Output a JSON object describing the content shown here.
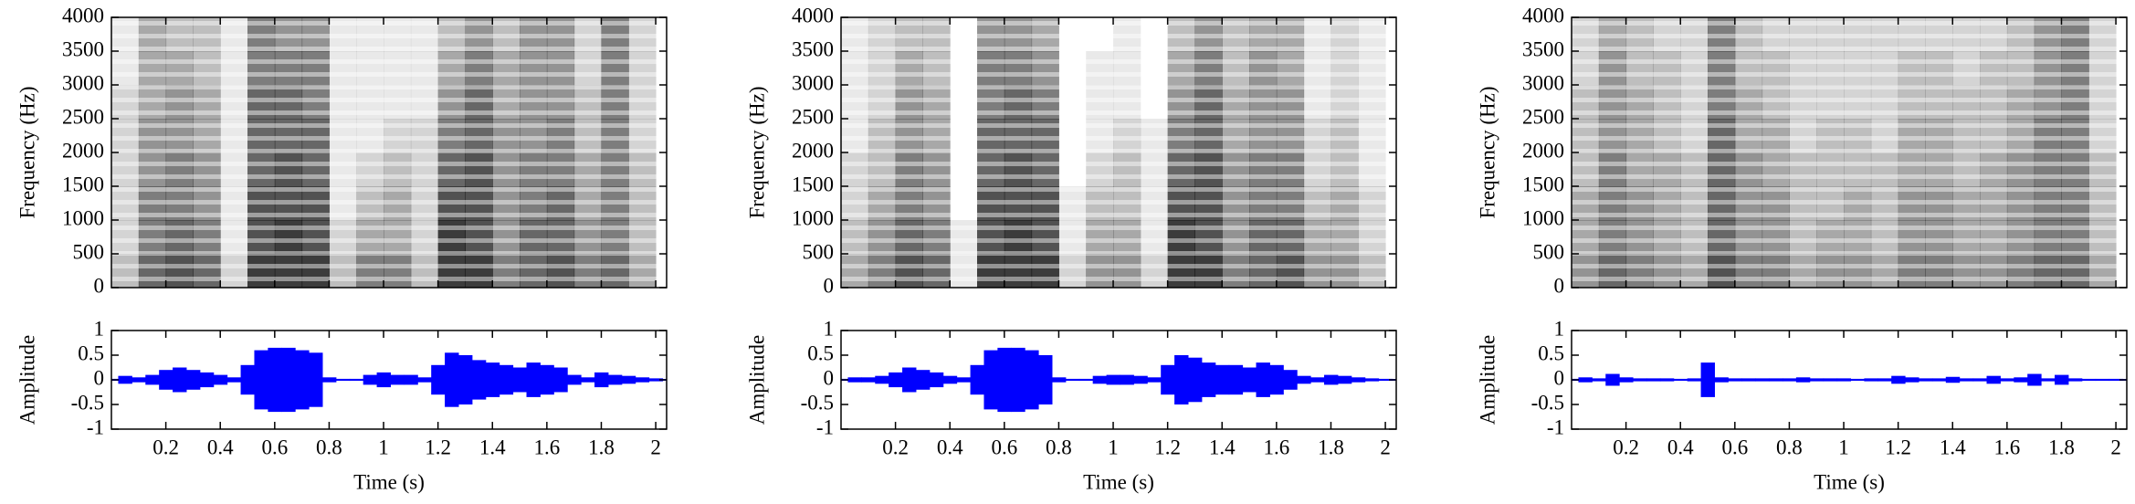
{
  "chart_data": [
    {
      "type": "spectrogram",
      "ylabel": "Frequency (Hz)",
      "color": "#000000",
      "xlim": [
        0,
        2.04
      ],
      "xticks": [
        0.2,
        0.4,
        0.6,
        0.8,
        1,
        1.2,
        1.4,
        1.6,
        1.8,
        2
      ],
      "ylim": [
        0,
        4000
      ],
      "yticks": [
        0,
        500,
        1000,
        1500,
        2000,
        2500,
        3000,
        3500,
        4000
      ],
      "x": [
        0.05,
        0.15,
        0.25,
        0.35,
        0.45,
        0.55,
        0.65,
        0.75,
        0.85,
        0.95,
        1.05,
        1.15,
        1.25,
        1.35,
        1.45,
        1.55,
        1.65,
        1.75,
        1.85,
        1.95
      ],
      "y": [
        250,
        750,
        1250,
        1750,
        2250,
        2750,
        3250,
        3750
      ],
      "values": [
        [
          0.3,
          0.7,
          0.8,
          0.7,
          0.2,
          0.9,
          0.9,
          0.9,
          0.3,
          0.6,
          0.6,
          0.3,
          0.9,
          0.9,
          0.6,
          0.7,
          0.8,
          0.6,
          0.7,
          0.4
        ],
        [
          0.2,
          0.6,
          0.7,
          0.6,
          0.1,
          0.8,
          0.9,
          0.8,
          0.2,
          0.4,
          0.4,
          0.2,
          0.9,
          0.8,
          0.5,
          0.7,
          0.7,
          0.5,
          0.6,
          0.3
        ],
        [
          0.2,
          0.6,
          0.6,
          0.5,
          0.1,
          0.8,
          0.8,
          0.8,
          0.1,
          0.3,
          0.4,
          0.2,
          0.8,
          0.8,
          0.5,
          0.6,
          0.7,
          0.4,
          0.6,
          0.3
        ],
        [
          0.2,
          0.5,
          0.6,
          0.5,
          0.1,
          0.7,
          0.8,
          0.7,
          0.1,
          0.2,
          0.3,
          0.2,
          0.7,
          0.8,
          0.5,
          0.6,
          0.6,
          0.4,
          0.6,
          0.3
        ],
        [
          0.2,
          0.5,
          0.5,
          0.4,
          0.1,
          0.7,
          0.7,
          0.7,
          0.1,
          0.1,
          0.2,
          0.2,
          0.6,
          0.7,
          0.5,
          0.5,
          0.6,
          0.3,
          0.6,
          0.2
        ],
        [
          0.2,
          0.4,
          0.5,
          0.4,
          0.1,
          0.7,
          0.7,
          0.6,
          0.1,
          0.1,
          0.1,
          0.1,
          0.5,
          0.7,
          0.4,
          0.5,
          0.5,
          0.3,
          0.6,
          0.2
        ],
        [
          0.1,
          0.4,
          0.4,
          0.3,
          0.1,
          0.6,
          0.6,
          0.6,
          0.1,
          0.1,
          0.1,
          0.1,
          0.4,
          0.6,
          0.4,
          0.5,
          0.5,
          0.2,
          0.6,
          0.2
        ],
        [
          0.1,
          0.4,
          0.3,
          0.3,
          0.1,
          0.6,
          0.5,
          0.5,
          0.1,
          0.1,
          0.1,
          0.1,
          0.3,
          0.5,
          0.3,
          0.5,
          0.5,
          0.2,
          0.6,
          0.2
        ]
      ]
    },
    {
      "type": "area",
      "xlabel": "Time (s)",
      "ylabel": "Amplitude",
      "xlim": [
        0,
        2.04
      ],
      "xticks": [
        0.2,
        0.4,
        0.6,
        0.8,
        1,
        1.2,
        1.4,
        1.6,
        1.8,
        2
      ],
      "ylim": [
        -1,
        1
      ],
      "yticks": [
        -1,
        -0.5,
        0,
        0.5,
        1
      ],
      "x": [
        0,
        0.05,
        0.1,
        0.15,
        0.2,
        0.25,
        0.3,
        0.35,
        0.4,
        0.45,
        0.5,
        0.55,
        0.6,
        0.65,
        0.7,
        0.75,
        0.8,
        0.85,
        0.9,
        0.95,
        1,
        1.05,
        1.1,
        1.15,
        1.2,
        1.25,
        1.3,
        1.35,
        1.4,
        1.45,
        1.5,
        1.55,
        1.6,
        1.65,
        1.7,
        1.75,
        1.8,
        1.85,
        1.9,
        1.95,
        2
      ],
      "series": [
        {
          "color": "#0000ff",
          "values": [
            0.02,
            0.08,
            0.05,
            0.1,
            0.2,
            0.25,
            0.2,
            0.15,
            0.1,
            0.05,
            0.3,
            0.6,
            0.65,
            0.65,
            0.6,
            0.55,
            0.05,
            0.02,
            0.02,
            0.1,
            0.15,
            0.1,
            0.1,
            0.05,
            0.3,
            0.55,
            0.5,
            0.4,
            0.35,
            0.3,
            0.25,
            0.35,
            0.3,
            0.25,
            0.1,
            0.05,
            0.15,
            0.1,
            0.08,
            0.05,
            0.03
          ]
        }
      ]
    },
    {
      "type": "spectrogram",
      "ylabel": "Frequency (Hz)",
      "color": "#000000",
      "xlim": [
        0,
        2.04
      ],
      "xticks": [
        0.2,
        0.4,
        0.6,
        0.8,
        1,
        1.2,
        1.4,
        1.6,
        1.8,
        2
      ],
      "ylim": [
        0,
        4000
      ],
      "yticks": [
        0,
        500,
        1000,
        1500,
        2000,
        2500,
        3000,
        3500,
        4000
      ],
      "x": [
        0.05,
        0.15,
        0.25,
        0.35,
        0.45,
        0.55,
        0.65,
        0.75,
        0.85,
        0.95,
        1.05,
        1.15,
        1.25,
        1.35,
        1.45,
        1.55,
        1.65,
        1.75,
        1.85,
        1.95
      ],
      "y": [
        250,
        750,
        1250,
        1750,
        2250,
        2750,
        3250,
        3750
      ],
      "values": [
        [
          0.4,
          0.6,
          0.8,
          0.7,
          0.1,
          0.9,
          0.9,
          0.9,
          0.2,
          0.5,
          0.5,
          0.2,
          0.9,
          0.9,
          0.6,
          0.7,
          0.8,
          0.5,
          0.5,
          0.3
        ],
        [
          0.3,
          0.5,
          0.7,
          0.6,
          0.1,
          0.8,
          0.9,
          0.8,
          0.1,
          0.4,
          0.4,
          0.1,
          0.9,
          0.8,
          0.5,
          0.7,
          0.7,
          0.4,
          0.4,
          0.2
        ],
        [
          0.2,
          0.4,
          0.6,
          0.5,
          0.0,
          0.8,
          0.8,
          0.8,
          0.1,
          0.3,
          0.3,
          0.1,
          0.8,
          0.8,
          0.5,
          0.6,
          0.6,
          0.3,
          0.4,
          0.2
        ],
        [
          0.2,
          0.3,
          0.6,
          0.5,
          0.0,
          0.7,
          0.8,
          0.7,
          0.0,
          0.2,
          0.3,
          0.1,
          0.7,
          0.8,
          0.5,
          0.6,
          0.6,
          0.2,
          0.3,
          0.1
        ],
        [
          0.1,
          0.3,
          0.5,
          0.4,
          0.0,
          0.7,
          0.7,
          0.7,
          0.0,
          0.1,
          0.2,
          0.1,
          0.6,
          0.7,
          0.4,
          0.5,
          0.5,
          0.2,
          0.3,
          0.1
        ],
        [
          0.1,
          0.2,
          0.5,
          0.4,
          0.0,
          0.6,
          0.7,
          0.6,
          0.0,
          0.1,
          0.1,
          0.0,
          0.5,
          0.7,
          0.4,
          0.5,
          0.5,
          0.1,
          0.2,
          0.1
        ],
        [
          0.1,
          0.2,
          0.4,
          0.3,
          0.0,
          0.6,
          0.6,
          0.5,
          0.0,
          0.1,
          0.1,
          0.0,
          0.4,
          0.6,
          0.3,
          0.5,
          0.4,
          0.1,
          0.2,
          0.1
        ],
        [
          0.1,
          0.2,
          0.3,
          0.3,
          0.0,
          0.5,
          0.5,
          0.4,
          0.0,
          0.0,
          0.1,
          0.0,
          0.3,
          0.5,
          0.3,
          0.4,
          0.4,
          0.1,
          0.2,
          0.1
        ]
      ]
    },
    {
      "type": "area",
      "xlabel": "Time (s)",
      "ylabel": "Amplitude",
      "xlim": [
        0,
        2.04
      ],
      "xticks": [
        0.2,
        0.4,
        0.6,
        0.8,
        1,
        1.2,
        1.4,
        1.6,
        1.8,
        2
      ],
      "ylim": [
        -1,
        1
      ],
      "yticks": [
        -1,
        -0.5,
        0,
        0.5,
        1
      ],
      "x": [
        0,
        0.05,
        0.1,
        0.15,
        0.2,
        0.25,
        0.3,
        0.35,
        0.4,
        0.45,
        0.5,
        0.55,
        0.6,
        0.65,
        0.7,
        0.75,
        0.8,
        0.85,
        0.9,
        0.95,
        1,
        1.05,
        1.1,
        1.15,
        1.2,
        1.25,
        1.3,
        1.35,
        1.4,
        1.45,
        1.5,
        1.55,
        1.6,
        1.65,
        1.7,
        1.75,
        1.8,
        1.85,
        1.9,
        1.95,
        2
      ],
      "series": [
        {
          "color": "#0000ff",
          "values": [
            0.02,
            0.05,
            0.05,
            0.08,
            0.15,
            0.25,
            0.2,
            0.15,
            0.08,
            0.05,
            0.3,
            0.6,
            0.65,
            0.65,
            0.6,
            0.5,
            0.05,
            0.02,
            0.02,
            0.08,
            0.1,
            0.1,
            0.08,
            0.05,
            0.3,
            0.5,
            0.45,
            0.35,
            0.3,
            0.3,
            0.25,
            0.35,
            0.3,
            0.2,
            0.08,
            0.05,
            0.1,
            0.08,
            0.05,
            0.03,
            0.02
          ]
        }
      ]
    },
    {
      "type": "spectrogram",
      "ylabel": "Frequency (Hz)",
      "color": "#000000",
      "xlim": [
        0,
        2.04
      ],
      "xticks": [
        0.2,
        0.4,
        0.6,
        0.8,
        1,
        1.2,
        1.4,
        1.6,
        1.8,
        2
      ],
      "ylim": [
        0,
        4000
      ],
      "yticks": [
        0,
        500,
        1000,
        1500,
        2000,
        2500,
        3000,
        3500,
        4000
      ],
      "x": [
        0.05,
        0.15,
        0.25,
        0.35,
        0.45,
        0.55,
        0.65,
        0.75,
        0.85,
        0.95,
        1.05,
        1.15,
        1.25,
        1.35,
        1.45,
        1.55,
        1.65,
        1.75,
        1.85,
        1.95
      ],
      "y": [
        250,
        750,
        1250,
        1750,
        2250,
        2750,
        3250,
        3750
      ],
      "values": [
        [
          0.5,
          0.7,
          0.6,
          0.5,
          0.4,
          0.8,
          0.6,
          0.6,
          0.4,
          0.5,
          0.5,
          0.4,
          0.6,
          0.6,
          0.5,
          0.5,
          0.6,
          0.7,
          0.7,
          0.4
        ],
        [
          0.4,
          0.6,
          0.5,
          0.4,
          0.3,
          0.7,
          0.5,
          0.5,
          0.3,
          0.4,
          0.4,
          0.3,
          0.5,
          0.5,
          0.4,
          0.4,
          0.5,
          0.6,
          0.6,
          0.3
        ],
        [
          0.4,
          0.6,
          0.5,
          0.4,
          0.3,
          0.7,
          0.5,
          0.5,
          0.3,
          0.3,
          0.4,
          0.3,
          0.5,
          0.5,
          0.4,
          0.4,
          0.5,
          0.6,
          0.6,
          0.3
        ],
        [
          0.3,
          0.6,
          0.4,
          0.4,
          0.3,
          0.7,
          0.5,
          0.4,
          0.3,
          0.3,
          0.3,
          0.3,
          0.4,
          0.4,
          0.3,
          0.4,
          0.5,
          0.6,
          0.6,
          0.3
        ],
        [
          0.3,
          0.5,
          0.4,
          0.3,
          0.2,
          0.7,
          0.4,
          0.4,
          0.2,
          0.3,
          0.3,
          0.2,
          0.4,
          0.4,
          0.3,
          0.3,
          0.4,
          0.6,
          0.6,
          0.2
        ],
        [
          0.3,
          0.5,
          0.4,
          0.3,
          0.2,
          0.6,
          0.4,
          0.3,
          0.2,
          0.2,
          0.2,
          0.2,
          0.3,
          0.3,
          0.3,
          0.3,
          0.4,
          0.5,
          0.6,
          0.2
        ],
        [
          0.2,
          0.5,
          0.3,
          0.3,
          0.2,
          0.6,
          0.3,
          0.3,
          0.2,
          0.2,
          0.2,
          0.2,
          0.3,
          0.3,
          0.2,
          0.3,
          0.3,
          0.5,
          0.6,
          0.2
        ],
        [
          0.2,
          0.4,
          0.3,
          0.2,
          0.2,
          0.6,
          0.3,
          0.2,
          0.2,
          0.2,
          0.2,
          0.2,
          0.2,
          0.2,
          0.2,
          0.2,
          0.3,
          0.5,
          0.6,
          0.2
        ]
      ]
    },
    {
      "type": "area",
      "xlabel": "Time (s)",
      "ylabel": "Amplitude",
      "xlim": [
        0,
        2.04
      ],
      "xticks": [
        0.2,
        0.4,
        0.6,
        0.8,
        1,
        1.2,
        1.4,
        1.6,
        1.8,
        2
      ],
      "ylim": [
        -1,
        1
      ],
      "yticks": [
        -1,
        -0.5,
        0,
        0.5,
        1
      ],
      "x": [
        0,
        0.05,
        0.1,
        0.15,
        0.2,
        0.25,
        0.3,
        0.35,
        0.4,
        0.45,
        0.5,
        0.55,
        0.6,
        0.65,
        0.7,
        0.75,
        0.8,
        0.85,
        0.9,
        0.95,
        1,
        1.05,
        1.1,
        1.15,
        1.2,
        1.25,
        1.3,
        1.35,
        1.4,
        1.45,
        1.5,
        1.55,
        1.6,
        1.65,
        1.7,
        1.75,
        1.8,
        1.85,
        1.9,
        1.95,
        2
      ],
      "series": [
        {
          "color": "#0000ff",
          "values": [
            0.02,
            0.05,
            0.03,
            0.12,
            0.05,
            0.03,
            0.03,
            0.03,
            0.02,
            0.03,
            0.35,
            0.05,
            0.03,
            0.03,
            0.03,
            0.03,
            0.03,
            0.05,
            0.03,
            0.03,
            0.03,
            0.02,
            0.03,
            0.03,
            0.08,
            0.05,
            0.03,
            0.03,
            0.06,
            0.03,
            0.03,
            0.08,
            0.03,
            0.05,
            0.12,
            0.03,
            0.1,
            0.03,
            0.02,
            0.02,
            0.02
          ]
        }
      ]
    }
  ]
}
